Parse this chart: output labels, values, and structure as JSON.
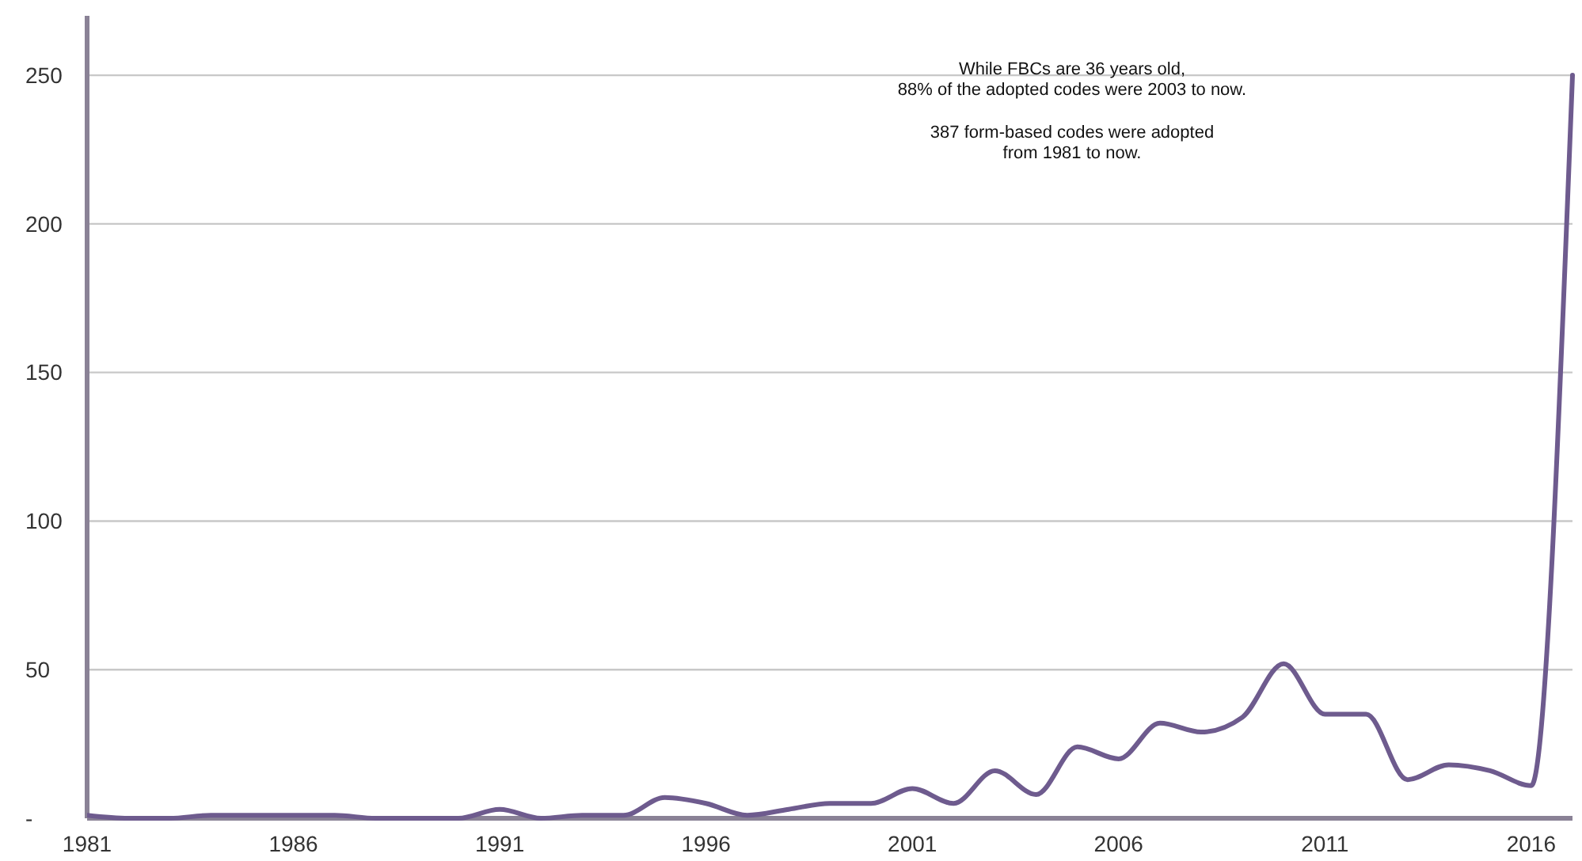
{
  "chart_data": {
    "type": "line",
    "x": [
      1981,
      1982,
      1983,
      1984,
      1985,
      1986,
      1987,
      1988,
      1989,
      1990,
      1991,
      1992,
      1993,
      1994,
      1995,
      1996,
      1997,
      1998,
      1999,
      2000,
      2001,
      2002,
      2003,
      2004,
      2005,
      2006,
      2007,
      2008,
      2009,
      2010,
      2011,
      2012,
      2013,
      2014,
      2015,
      2016,
      2017
    ],
    "series": [
      {
        "color": "#6e5b8e",
        "values": [
          1,
          0,
          0,
          1,
          1,
          1,
          1,
          0,
          0,
          0,
          3,
          0,
          1,
          1,
          7,
          5,
          1,
          3,
          5,
          5,
          10,
          5,
          16,
          8,
          24,
          20,
          32,
          29,
          34,
          52,
          35,
          35,
          13,
          18,
          16,
          11,
          250
        ]
      }
    ],
    "xlim": [
      1981,
      2017
    ],
    "xticks": [
      1981,
      1986,
      1991,
      1996,
      2001,
      2006,
      2011,
      2016
    ],
    "ylim": [
      0,
      270
    ],
    "yticks": [
      {
        "value": 0,
        "label": "-"
      },
      50,
      100,
      150,
      200,
      250
    ],
    "grid": "y",
    "marker": "none",
    "line_style": "solid",
    "annotations": [
      "While FBCs are 36 years old,\n88% of the adopted codes were 2003 to now.",
      "387 form-based codes were adopted\nfrom 1981 to now."
    ]
  }
}
